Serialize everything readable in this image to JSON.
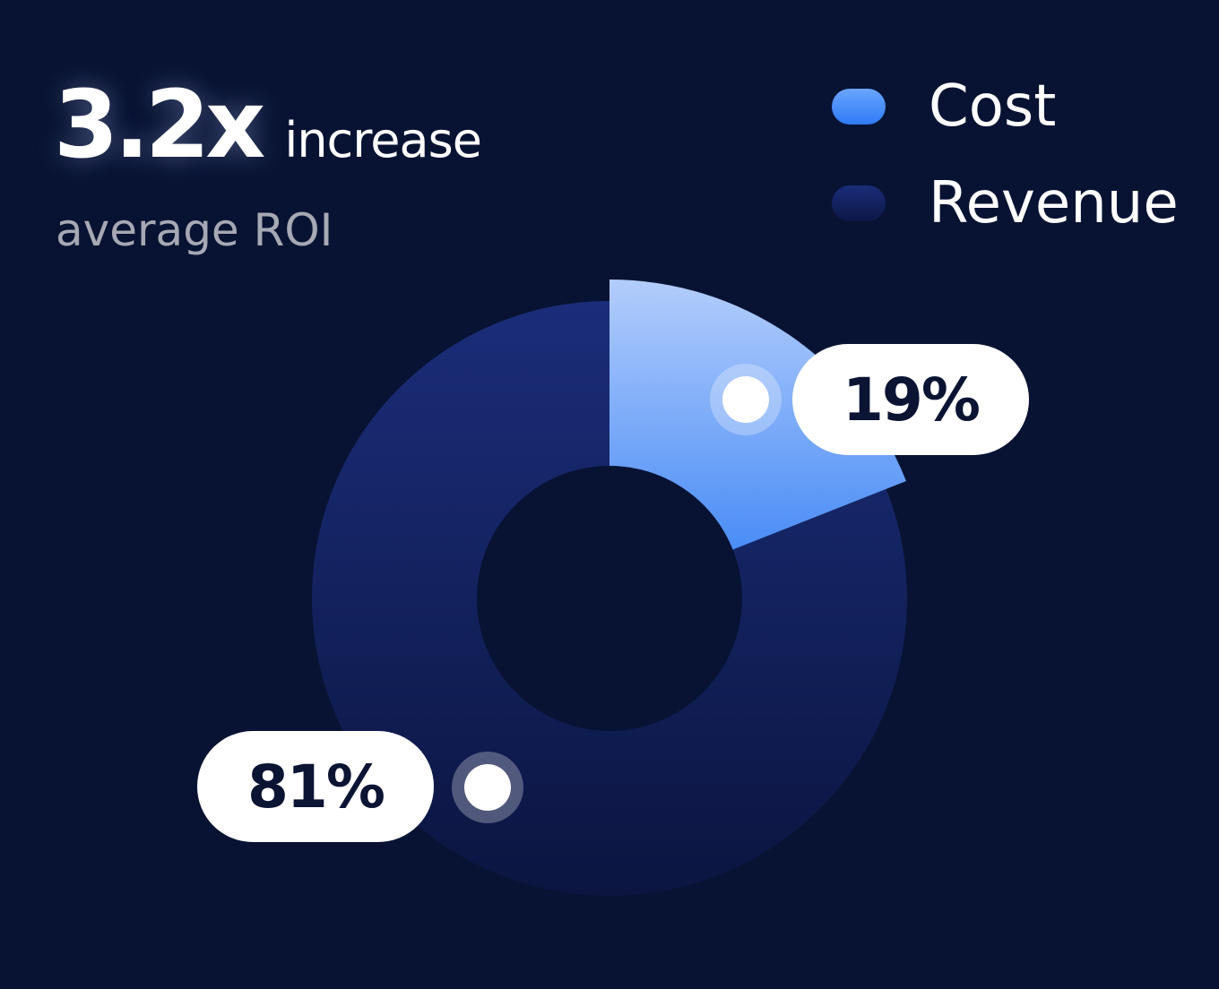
{
  "headline": {
    "value": "3.2x",
    "suffix": "increase",
    "sub": "average ROI"
  },
  "chart_data": {
    "type": "pie",
    "series": [
      {
        "name": "Cost",
        "value": 19,
        "label": "19%"
      },
      {
        "name": "Revenue",
        "value": 81,
        "label": "81%"
      }
    ],
    "legend": {
      "placement": "top-right"
    }
  },
  "colors": {
    "background": "#081333",
    "cost_light": "#b3cdfb",
    "cost_dark": "#3781f6",
    "revenue_light": "#1b2d7a",
    "revenue_dark": "#0b1540",
    "label_text": "#0b1433"
  }
}
